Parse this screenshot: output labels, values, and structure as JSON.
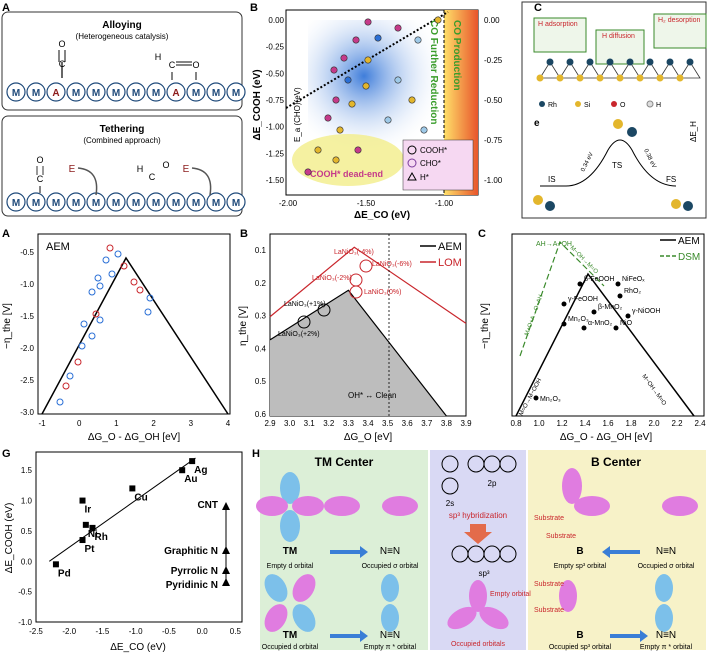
{
  "figure": {
    "panels": {
      "A_top": {
        "label": "A",
        "alloying_title": "Alloying",
        "alloying_subtitle": "(Heterogeneous catalysis)",
        "tethering_title": "Tethering",
        "tethering_subtitle": "(Combined approach)",
        "atom_M": "M",
        "atom_A": "A",
        "atom_O": "O",
        "atom_C": "C",
        "atom_H": "H",
        "atom_E": "E"
      },
      "B_top": {
        "label": "B",
        "xlabel": "ΔE_CO (eV)",
        "ylabel": "ΔE_COOH (eV)",
        "legend": [
          "COOH*",
          "CHO*",
          "H*"
        ],
        "region_reduction": "CO Further Reduction",
        "region_production": "CO Production",
        "region_deadend": "COOH* dead-end",
        "ea_label": "E_a (CHO)(eV)",
        "xticks": [
          "-2.00",
          "-1.50",
          "-1.00"
        ],
        "yticks": [
          "0.00",
          "-0.25",
          "-0.50",
          "-0.75",
          "-1.00",
          "-1.25",
          "-1.50"
        ],
        "rticks": [
          "0.00",
          "-0.25",
          "-0.50",
          "-0.75",
          "-1.00"
        ]
      },
      "C_top": {
        "label": "C",
        "h_adsorption": "H adsorption",
        "h_diffusion": "H diffusion",
        "h2_desorption": "H₂ desorption",
        "legend": [
          "Rh",
          "Si",
          "O",
          "H"
        ],
        "e_label": "e",
        "is": "IS",
        "ts": "TS",
        "fs": "FS",
        "barrier1": "0.34 eV",
        "barrier2": "0.38 eV",
        "delta_eh": "ΔE_H"
      },
      "A_mid": {
        "label": "A",
        "legend": "AEM",
        "xlabel": "ΔG_O - ΔG_OH [eV]",
        "ylabel": "−η_the [V]",
        "xticks": [
          "-1",
          "0",
          "1",
          "2",
          "3",
          "4"
        ],
        "yticks": [
          "-0.5",
          "-1.0",
          "-1.5",
          "-2.0",
          "-2.5",
          "-3.0"
        ]
      },
      "B_mid": {
        "label": "B",
        "legend": [
          "AEM",
          "LOM"
        ],
        "xlabel": "ΔG_O [eV]",
        "ylabel": "η_the [V]",
        "xticks": [
          "2.9",
          "3.0",
          "3.1",
          "3.2",
          "3.3",
          "3.4",
          "3.5",
          "3.6",
          "3.7",
          "3.8",
          "3.9"
        ],
        "yticks": [
          "0.1",
          "0.2",
          "0.3",
          "0.4",
          "0.5",
          "0.6"
        ],
        "points_red": [
          "LaNiO₃(-4%)",
          "LaNiO₃(-2%)",
          "LaNiO₃(-6%)",
          "LaNiO₃(0%)"
        ],
        "points_black": [
          "LaNiO₃(+1%)",
          "LaNiO₃(+2%)"
        ],
        "annotation": "OH* ↔ Clean"
      },
      "C_mid": {
        "label": "C",
        "legend": [
          "AEM",
          "DSM"
        ],
        "xlabel": "ΔG_O - ΔG_OH [eV]",
        "ylabel": "−η_the [V]",
        "xticks": [
          "0.8",
          "1.0",
          "1.2",
          "1.4",
          "1.6",
          "1.8",
          "2.0",
          "2.2",
          "2.4"
        ],
        "points": [
          "β-FeOOH",
          "NiFeOₓ",
          "RhO₂",
          "γ-FeOOH",
          "β-MnO₂",
          "γ-NiOOH",
          "Mn₂O₃",
          "α-MnO₂",
          "NiO"
        ],
        "bottom_point": "Mn₂O₃",
        "line_top": "AH→A+OH",
        "line_left_dsm": "M+O+A→O−AH",
        "line_right_dsm": "M−OH→M=O",
        "line_left_aem": "M=O→M−OOH",
        "line_right_aem": "M−OH→M=O"
      },
      "G": {
        "label": "G",
        "xlabel": "ΔE_CO (eV)",
        "ylabel": "ΔE_COOH (eV)",
        "xticks": [
          "-2.5",
          "-2.0",
          "-1.5",
          "-1.0",
          "-0.5",
          "0.0",
          "0.5"
        ],
        "yticks": [
          "1.5",
          "1.0",
          "0.5",
          "0.0",
          "-0.5",
          "-1.0"
        ],
        "points": [
          "Pd",
          "Pt",
          "Ni",
          "Rh",
          "Ir",
          "Cu",
          "Au",
          "Ag"
        ],
        "right_labels": [
          "CNT",
          "Graphitic N",
          "Pyrrolic N",
          "Pyridinic N"
        ]
      },
      "H": {
        "label": "H",
        "tm_center": "TM Center",
        "b_center": "B Center",
        "tm": "TM",
        "b": "B",
        "nn": "N≡N",
        "empty_d": "Empty d orbital",
        "occupied_sigma": "Occupied σ orbital",
        "occupied_d": "Occupied d orbital",
        "empty_pi": "Empty π * orbital",
        "orbital_2s": "2s",
        "orbital_2p": "2p",
        "sp3_hybridization": "sp³ hybridization",
        "sp3": "sp³",
        "empty_orbital": "Empty orbital",
        "occupied_orbitals": "Occupied orbitals",
        "substrate": "Substrate",
        "empty_sp3": "Empty sp³ orbital",
        "occupied_sp3": "Occupied sp³ orbital"
      }
    }
  },
  "chart_data": [
    {
      "type": "line",
      "title": "",
      "xlabel": "ΔG_O [eV]",
      "ylabel": "η_the [V]",
      "series": [
        {
          "name": "AEM",
          "x": [
            2.9,
            3.3,
            3.8
          ],
          "y": [
            0.37,
            0.22,
            0.6
          ]
        },
        {
          "name": "LOM",
          "x": [
            2.9,
            3.33,
            3.9
          ],
          "y": [
            0.3,
            0.09,
            0.32
          ]
        }
      ],
      "xlim": [
        2.9,
        3.9
      ],
      "ylim": [
        0.6,
        0.05
      ]
    },
    {
      "type": "scatter",
      "title": "",
      "xlabel": "ΔE_CO (eV)",
      "ylabel": "ΔE_COOH (eV)",
      "series": [
        {
          "name": "",
          "x": [
            -2.2,
            -1.8,
            -1.75,
            -1.65,
            -1.8,
            -1.05,
            -0.3,
            -0.15
          ],
          "y": [
            -0.05,
            0.35,
            0.6,
            0.55,
            1.0,
            1.2,
            1.5,
            1.65
          ]
        }
      ],
      "xlim": [
        -2.5,
        0.6
      ],
      "ylim": [
        -1.0,
        1.8
      ]
    }
  ]
}
